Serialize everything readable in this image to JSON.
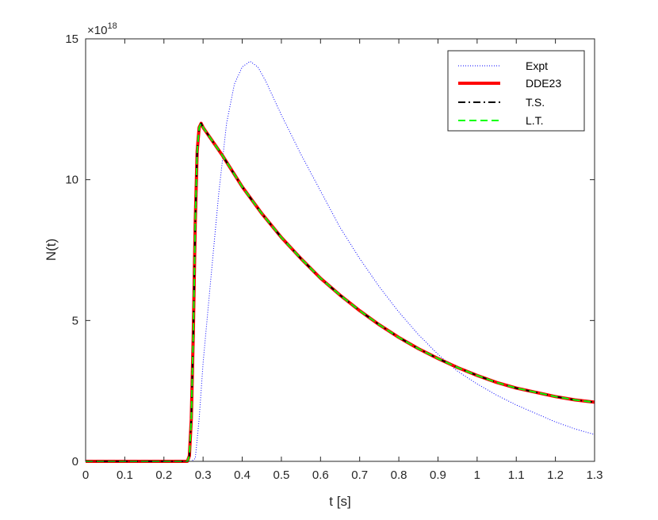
{
  "chart_data": {
    "type": "line",
    "title": "",
    "xlabel": "t [s]",
    "ylabel": "N(t)",
    "y_exponent_label": "×10",
    "y_exponent_power": "18",
    "xlim": [
      0,
      1.3
    ],
    "ylim": [
      0,
      15
    ],
    "xticks": [
      0,
      0.1,
      0.2,
      0.3,
      0.4,
      0.5,
      0.6,
      0.7,
      0.8,
      0.9,
      1,
      1.1,
      1.2,
      1.3
    ],
    "xtick_labels": [
      "0",
      "0.1",
      "0.2",
      "0.3",
      "0.4",
      "0.5",
      "0.6",
      "0.7",
      "0.8",
      "0.9",
      "1",
      "1.1",
      "1.2",
      "1.3"
    ],
    "yticks": [
      0,
      5,
      10,
      15
    ],
    "ytick_labels": [
      "0",
      "5",
      "10",
      "15"
    ],
    "grid": false,
    "legend_position": "top-right",
    "series": [
      {
        "name": "Expt",
        "color": "#0000ff",
        "style": "dotted",
        "x": [
          0,
          0.05,
          0.1,
          0.15,
          0.2,
          0.25,
          0.27,
          0.28,
          0.29,
          0.3,
          0.32,
          0.34,
          0.36,
          0.38,
          0.4,
          0.42,
          0.44,
          0.46,
          0.48,
          0.5,
          0.55,
          0.6,
          0.65,
          0.7,
          0.75,
          0.8,
          0.85,
          0.9,
          0.95,
          1.0,
          1.05,
          1.1,
          1.15,
          1.2,
          1.25,
          1.3
        ],
        "y": [
          0,
          0,
          0,
          0,
          0,
          0,
          0,
          0.1,
          1.5,
          3.5,
          6.5,
          9.5,
          12.0,
          13.4,
          14.0,
          14.2,
          14.0,
          13.5,
          12.9,
          12.3,
          10.9,
          9.6,
          8.3,
          7.2,
          6.2,
          5.3,
          4.5,
          3.8,
          3.2,
          2.75,
          2.35,
          2.0,
          1.7,
          1.4,
          1.15,
          0.95
        ]
      },
      {
        "name": "DDE23",
        "color": "#ff0000",
        "style": "solid",
        "x": [
          0,
          0.1,
          0.2,
          0.26,
          0.265,
          0.27,
          0.275,
          0.28,
          0.285,
          0.29,
          0.295,
          0.3,
          0.35,
          0.4,
          0.45,
          0.5,
          0.55,
          0.6,
          0.65,
          0.7,
          0.75,
          0.8,
          0.85,
          0.9,
          0.95,
          1.0,
          1.05,
          1.1,
          1.15,
          1.2,
          1.25,
          1.3
        ],
        "y": [
          0,
          0,
          0,
          0,
          0.2,
          1.5,
          4.5,
          8.5,
          11.0,
          11.85,
          12.0,
          11.85,
          10.85,
          9.75,
          8.8,
          7.95,
          7.2,
          6.5,
          5.9,
          5.35,
          4.85,
          4.4,
          4.0,
          3.65,
          3.33,
          3.05,
          2.8,
          2.6,
          2.45,
          2.3,
          2.18,
          2.1
        ]
      },
      {
        "name": "T.S.",
        "color": "#000000",
        "style": "dashdot",
        "x": [
          0,
          0.1,
          0.2,
          0.26,
          0.265,
          0.27,
          0.275,
          0.28,
          0.285,
          0.29,
          0.295,
          0.3,
          0.35,
          0.4,
          0.45,
          0.5,
          0.55,
          0.6,
          0.65,
          0.7,
          0.75,
          0.8,
          0.85,
          0.9,
          0.95,
          1.0,
          1.05,
          1.1,
          1.15,
          1.2,
          1.25,
          1.3
        ],
        "y": [
          0,
          0,
          0,
          0,
          0.2,
          1.5,
          4.5,
          8.5,
          11.0,
          11.85,
          12.0,
          11.85,
          10.85,
          9.75,
          8.8,
          7.95,
          7.2,
          6.5,
          5.9,
          5.35,
          4.85,
          4.4,
          4.0,
          3.65,
          3.33,
          3.05,
          2.8,
          2.6,
          2.45,
          2.3,
          2.18,
          2.1
        ]
      },
      {
        "name": "L.T.",
        "color": "#00ff00",
        "style": "dashed",
        "x": [
          0,
          0.1,
          0.2,
          0.26,
          0.265,
          0.27,
          0.275,
          0.28,
          0.285,
          0.29,
          0.295,
          0.3,
          0.35,
          0.4,
          0.45,
          0.5,
          0.55,
          0.6,
          0.65,
          0.7,
          0.75,
          0.8,
          0.85,
          0.9,
          0.95,
          1.0,
          1.05,
          1.1,
          1.15,
          1.2,
          1.25,
          1.3
        ],
        "y": [
          0,
          0,
          0,
          0,
          0.2,
          1.5,
          4.5,
          8.5,
          11.0,
          11.85,
          12.0,
          11.85,
          10.85,
          9.75,
          8.8,
          7.95,
          7.2,
          6.5,
          5.9,
          5.35,
          4.85,
          4.4,
          4.0,
          3.65,
          3.33,
          3.05,
          2.8,
          2.6,
          2.45,
          2.3,
          2.18,
          2.1
        ]
      }
    ]
  }
}
